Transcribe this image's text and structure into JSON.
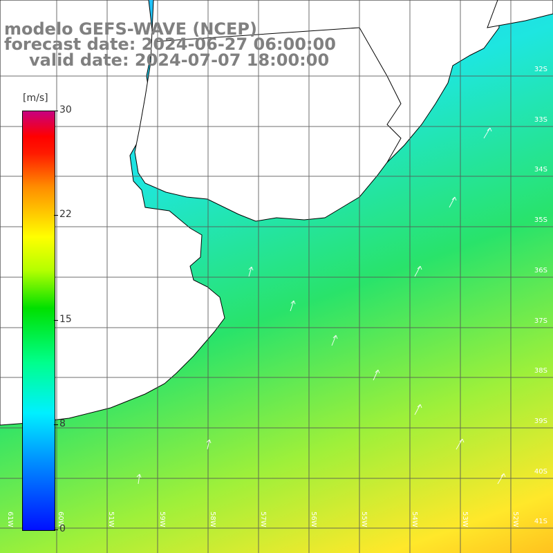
{
  "title": {
    "model": "modelo GEFS-WAVE (NCEP)",
    "forecast": "forecast date: 2024-06-27 06:00:00",
    "valid": "valid date: 2024-07-07 18:00:00"
  },
  "colorbar": {
    "unit": "[m/s]",
    "ticks": [
      "30",
      "22",
      "15",
      "8",
      "0"
    ],
    "range": [
      0,
      30
    ],
    "colors": [
      "#0010ff",
      "#00f0ff",
      "#00e000",
      "#ffff00",
      "#ff0000",
      "#c80080"
    ]
  },
  "lat_labels": [
    "32S",
    "33S",
    "34S",
    "35S",
    "36S",
    "37S",
    "38S",
    "39S",
    "40S",
    "41S"
  ],
  "lon_labels": [
    "61W",
    "60W",
    "59W",
    "58W",
    "57W",
    "56W",
    "55W",
    "54W",
    "53W",
    "52W",
    "51W"
  ],
  "colors": {
    "land": "#ffffff",
    "coast": "#000000",
    "grid": "#555555",
    "title": "#808080",
    "arrows": "#ffffff"
  }
}
